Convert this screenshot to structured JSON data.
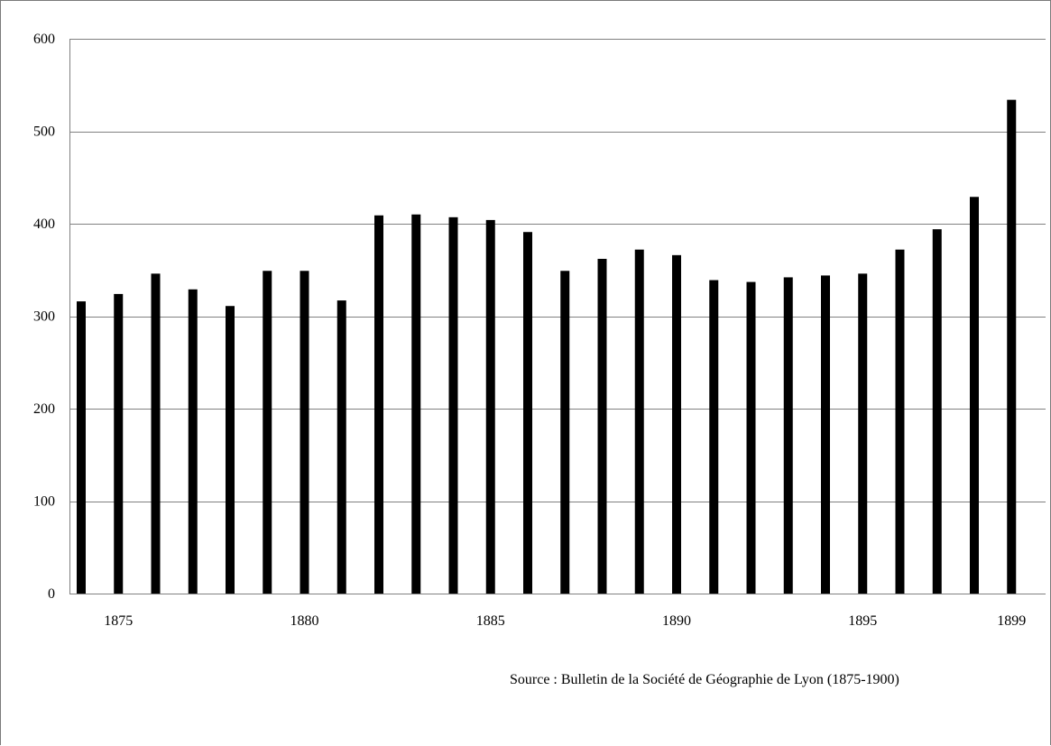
{
  "chart_data": {
    "type": "bar",
    "title": "",
    "xlabel": "",
    "ylabel": "",
    "ylim": [
      0,
      600
    ],
    "yticks": [
      0,
      100,
      200,
      300,
      400,
      500,
      600
    ],
    "xtick_labels": [
      "1875",
      "1880",
      "1885",
      "1890",
      "1895",
      "1899"
    ],
    "xtick_positions": [
      1875,
      1880,
      1885,
      1890,
      1895,
      1899
    ],
    "categories": [
      1874,
      1875,
      1876,
      1877,
      1878,
      1879,
      1880,
      1881,
      1882,
      1883,
      1884,
      1885,
      1886,
      1887,
      1888,
      1889,
      1890,
      1891,
      1892,
      1893,
      1894,
      1895,
      1896,
      1897,
      1898,
      1899
    ],
    "values": [
      316,
      324,
      346,
      329,
      311,
      349,
      349,
      317,
      409,
      410,
      407,
      404,
      391,
      349,
      362,
      372,
      366,
      339,
      337,
      342,
      344,
      346,
      372,
      394,
      429,
      534
    ],
    "grid": true,
    "legend": "none",
    "colors": {
      "bar": "#000000",
      "grid": "#808080",
      "axis": "#808080"
    }
  },
  "source_note": "Source : Bulletin de la Société de Géographie de Lyon (1875-1900)"
}
